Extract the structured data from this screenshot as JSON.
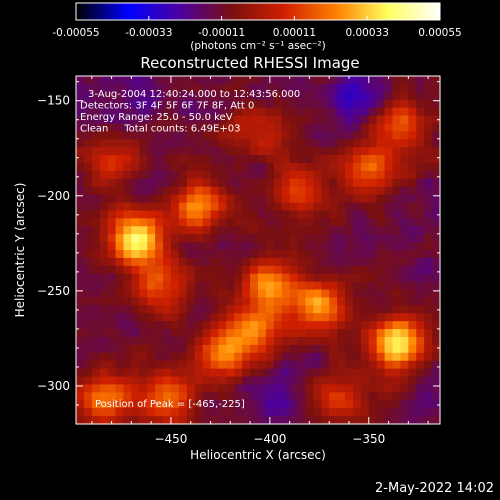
{
  "colorbar": {
    "ticks": [
      "-0.00055",
      "-0.00033",
      "-0.00011",
      "0.00011",
      "0.00033",
      "0.00055"
    ],
    "range": [
      -0.00055,
      0.00055
    ],
    "colormap": [
      "#000000",
      "#0000ff",
      "#4b00a0",
      "#7a1010",
      "#d02000",
      "#ff8000",
      "#ffff60",
      "#ffffff"
    ],
    "unit_label": "(photons cm⁻² s⁻¹ asec⁻²)"
  },
  "chart_data": {
    "type": "heatmap",
    "title": "Reconstructed RHESSI Image",
    "xlabel": "Heliocentric X (arcsec)",
    "ylabel": "Heliocentric Y (arcsec)",
    "xlim": [
      -498,
      -314
    ],
    "ylim": [
      -320,
      -137
    ],
    "xticks": [
      -450,
      -400,
      -350
    ],
    "yticks": [
      -150,
      -200,
      -250,
      -300
    ],
    "info_lines": [
      "3-Aug-2004 12:40:24.000 to 12:43:56.000",
      "Detectors: 3F 4F 5F 6F 7F 8F, Att 0",
      "Energy Range: 25.0 - 50.0 keV",
      "Clean     Total counts: 6.49E+03"
    ],
    "peak_label": "Position of Peak = [-465,-225]",
    "peak": [
      -465,
      -225
    ],
    "sources": [
      {
        "x": -468,
        "y": -223,
        "amp": 0.00055
      },
      {
        "x": -456,
        "y": -247,
        "amp": 0.0003
      },
      {
        "x": -436,
        "y": -205,
        "amp": 0.00035
      },
      {
        "x": -400,
        "y": -247,
        "amp": 0.00036
      },
      {
        "x": -408,
        "y": -271,
        "amp": 0.00033
      },
      {
        "x": -375,
        "y": -258,
        "amp": 0.00038
      },
      {
        "x": -336,
        "y": -277,
        "amp": 0.0005
      },
      {
        "x": -349,
        "y": -187,
        "amp": 0.0003
      },
      {
        "x": -335,
        "y": -161,
        "amp": 0.00032
      },
      {
        "x": -385,
        "y": -197,
        "amp": 0.00026
      },
      {
        "x": -484,
        "y": -307,
        "amp": 0.00034
      },
      {
        "x": -452,
        "y": -305,
        "amp": 0.0003
      },
      {
        "x": -425,
        "y": -283,
        "amp": 0.0003
      },
      {
        "x": -479,
        "y": -181,
        "amp": 0.00022
      },
      {
        "x": -405,
        "y": -167,
        "amp": 0.00018
      },
      {
        "x": -364,
        "y": -305,
        "amp": 0.00025
      },
      {
        "x": -468,
        "y": -150,
        "amp": -8e-05
      },
      {
        "x": -352,
        "y": -150,
        "amp": -0.0002
      },
      {
        "x": -395,
        "y": -305,
        "amp": -0.0001
      }
    ]
  },
  "footer": {
    "datestamp": "2-May-2022 14:02"
  }
}
